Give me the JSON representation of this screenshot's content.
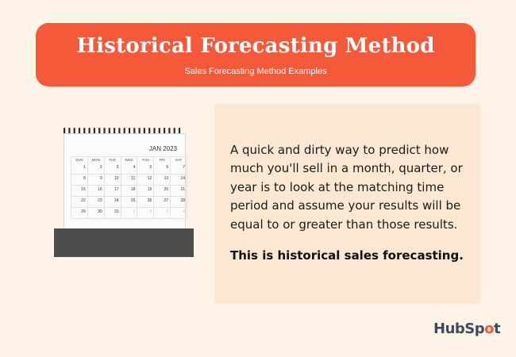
{
  "header": {
    "title": "Historical Forecasting Method",
    "subtitle": "Sales Forecasting Method Examples"
  },
  "calendar": {
    "month": "JAN 2023",
    "weekdays": [
      "SUN",
      "MON",
      "TUE",
      "WED",
      "THU",
      "FRI",
      "SAT"
    ],
    "days": [
      "",
      "",
      "",
      "",
      "",
      "",
      ""
    ],
    "rows": [
      [
        "1",
        "2",
        "3",
        "4",
        "5",
        "6",
        "7"
      ],
      [
        "8",
        "9",
        "10",
        "11",
        "12",
        "13",
        "14"
      ],
      [
        "15",
        "16",
        "17",
        "18",
        "19",
        "20",
        "21"
      ],
      [
        "22",
        "23",
        "24",
        "25",
        "26",
        "27",
        "28"
      ],
      [
        "29",
        "30",
        "31",
        "1",
        "2",
        "3",
        "4"
      ]
    ]
  },
  "content": {
    "body": "A quick and dirty way to predict how much you'll sell in a month, quarter, or year is to look at the matching time period and assume your results will be equal to or greater than those results.",
    "emphasis": "This is historical sales forecasting."
  },
  "logo": {
    "text_part1": "HubSp",
    "text_spot": "o",
    "text_part2": "t"
  },
  "colors": {
    "banner": "#f4593a",
    "background": "#fdf3e7",
    "panel": "#fbe7d2"
  },
  "icons": [
    "calendar-image",
    "hubspot-logo"
  ]
}
